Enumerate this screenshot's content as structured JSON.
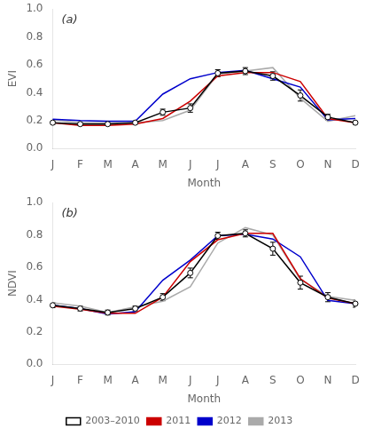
{
  "chart_data": [
    {
      "type": "line",
      "annotation": "(a)",
      "x_label": "Month",
      "y_label": "EVI",
      "categories": [
        "J",
        "F",
        "M",
        "A",
        "M",
        "J",
        "J",
        "A",
        "S",
        "O",
        "N",
        "D"
      ],
      "series": [
        {
          "name": "2003–2010",
          "color": "#000000",
          "marker": "circle",
          "values": [
            0.185,
            0.175,
            0.175,
            0.185,
            0.26,
            0.29,
            0.54,
            0.555,
            0.52,
            0.38,
            0.225,
            0.185
          ],
          "errors": [
            0.012,
            0.01,
            0.01,
            0.01,
            0.022,
            0.03,
            0.025,
            0.025,
            0.03,
            0.04,
            0.02,
            0.012
          ]
        },
        {
          "name": "2011",
          "color": "#cc0000",
          "marker": "none",
          "values": [
            0.185,
            0.165,
            0.165,
            0.175,
            0.215,
            0.34,
            0.52,
            0.545,
            0.545,
            0.48,
            0.215,
            0.185
          ]
        },
        {
          "name": "2012",
          "color": "#0000cc",
          "marker": "none",
          "values": [
            0.21,
            0.2,
            0.195,
            0.195,
            0.39,
            0.5,
            0.545,
            0.56,
            0.5,
            0.44,
            0.205,
            0.215
          ]
        },
        {
          "name": "2013",
          "color": "#aaaaaa",
          "marker": "none",
          "values": [
            0.205,
            0.185,
            0.185,
            0.185,
            0.2,
            0.275,
            0.535,
            0.555,
            0.58,
            0.36,
            0.195,
            0.235
          ]
        }
      ],
      "ylim": [
        0.0,
        1.0
      ],
      "yticks": [
        {
          "value": 0,
          "label": "0.0"
        },
        0.2,
        0.4,
        0.6,
        0.8,
        {
          "value": 1,
          "label": "1.0"
        }
      ],
      "grid": false
    },
    {
      "type": "line",
      "annotation": "(b)",
      "x_label": "Month",
      "y_label": "NDVI",
      "categories": [
        "J",
        "F",
        "M",
        "A",
        "M",
        "J",
        "J",
        "A",
        "S",
        "O",
        "N",
        "D"
      ],
      "series": [
        {
          "name": "2003–2010",
          "color": "#000000",
          "marker": "circle",
          "values": [
            0.365,
            0.345,
            0.32,
            0.345,
            0.415,
            0.565,
            0.795,
            0.81,
            0.715,
            0.505,
            0.415,
            0.375
          ],
          "errors": [
            0.015,
            0.015,
            0.015,
            0.015,
            0.022,
            0.03,
            0.022,
            0.022,
            0.04,
            0.04,
            0.028,
            0.022
          ]
        },
        {
          "name": "2011",
          "color": "#cc0000",
          "marker": "none",
          "values": [
            0.36,
            0.34,
            0.315,
            0.315,
            0.415,
            0.635,
            0.77,
            0.81,
            0.81,
            0.53,
            0.41,
            0.375
          ]
        },
        {
          "name": "2012",
          "color": "#0000cc",
          "marker": "none",
          "values": [
            0.365,
            0.345,
            0.31,
            0.325,
            0.52,
            0.645,
            0.795,
            0.805,
            0.775,
            0.665,
            0.395,
            0.375
          ]
        },
        {
          "name": "2013",
          "color": "#aaaaaa",
          "marker": "none",
          "values": [
            0.38,
            0.36,
            0.32,
            0.355,
            0.39,
            0.48,
            0.75,
            0.845,
            0.8,
            0.525,
            0.42,
            0.395
          ]
        }
      ],
      "ylim": [
        0.0,
        1.0
      ],
      "yticks": [
        {
          "value": 0,
          "label": "0.0"
        },
        0.2,
        0.4,
        0.6,
        0.8,
        {
          "value": 1,
          "label": "1.0"
        }
      ],
      "grid": false,
      "legend": "bottom"
    }
  ]
}
